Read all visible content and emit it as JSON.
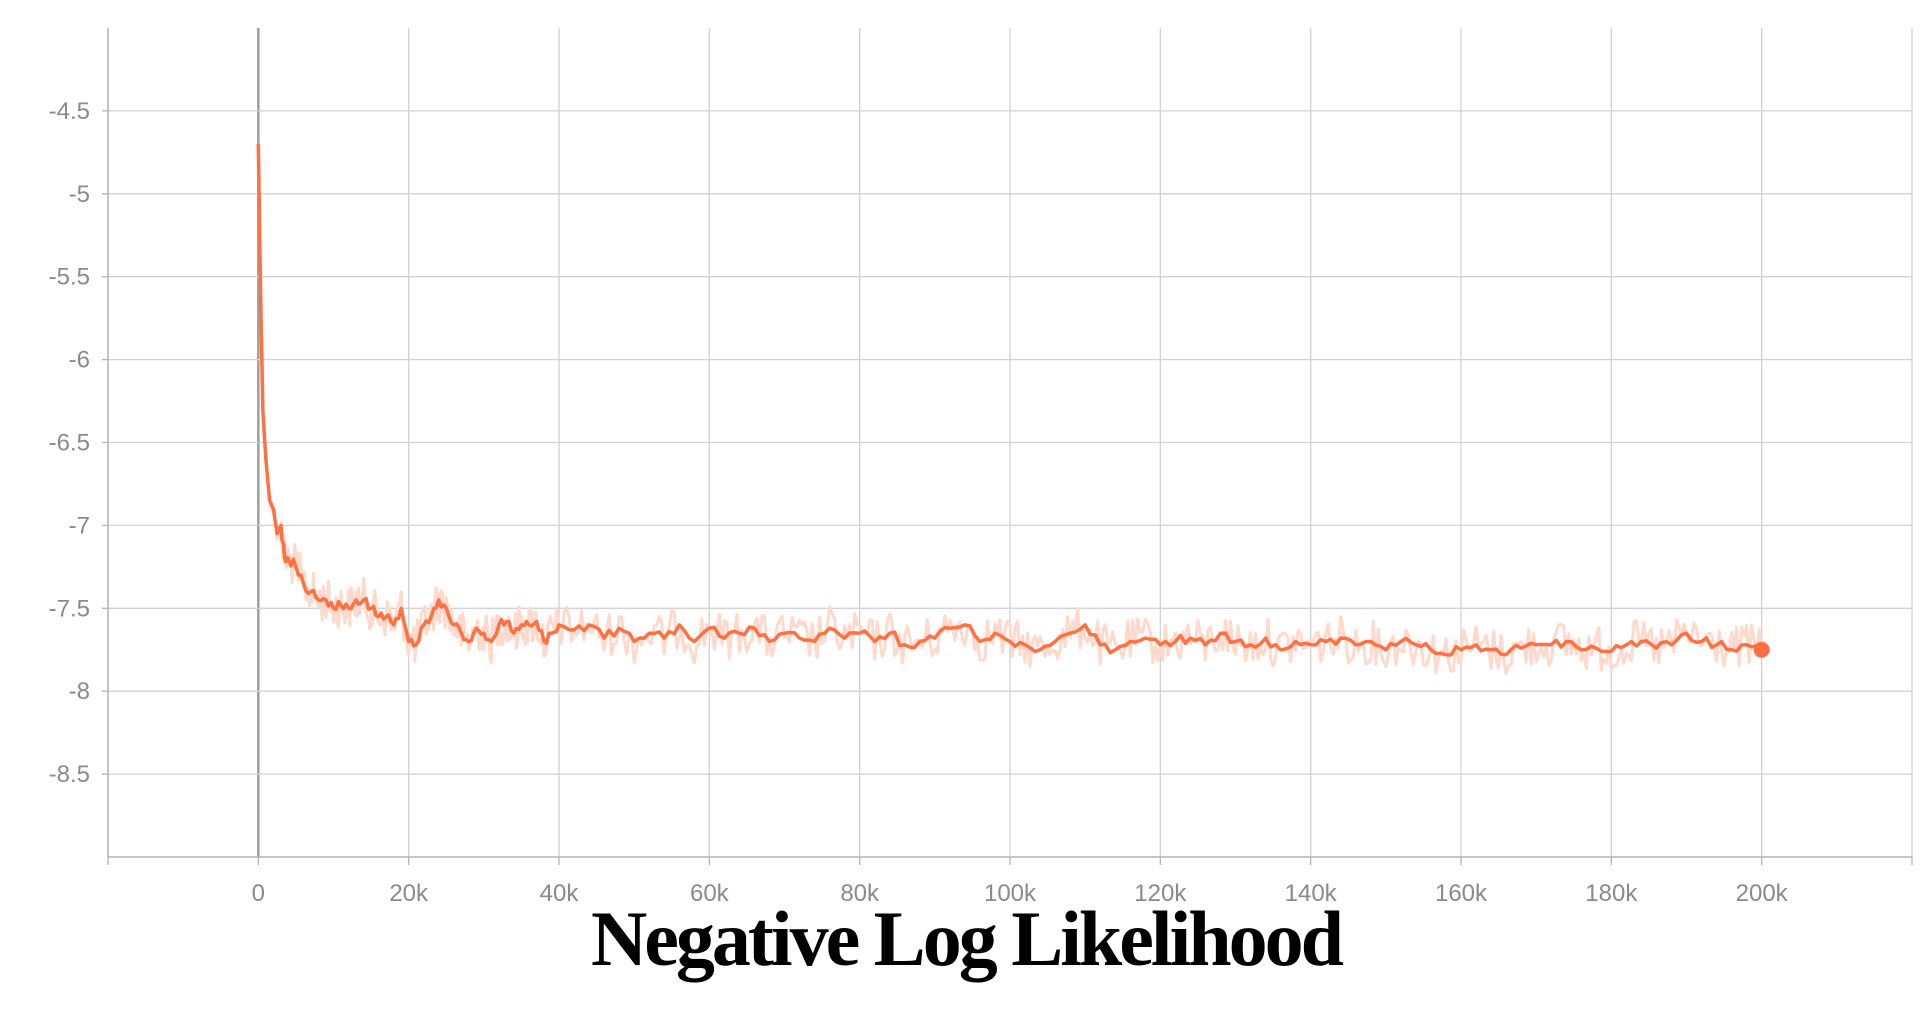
{
  "chart_data": {
    "type": "line",
    "title": "Negative Log Likelihood",
    "xlabel": "",
    "ylabel": "",
    "xlim": [
      -20000,
      220000
    ],
    "ylim": [
      -9.0,
      -4.0
    ],
    "x_ticks": [
      0,
      20000,
      40000,
      60000,
      80000,
      100000,
      120000,
      140000,
      160000,
      180000,
      200000
    ],
    "x_tick_labels": [
      "0",
      "20k",
      "40k",
      "60k",
      "80k",
      "100k",
      "120k",
      "140k",
      "160k",
      "180k",
      "200k"
    ],
    "y_ticks": [
      -4.5,
      -5,
      -5.5,
      -6,
      -6.5,
      -7,
      -7.5,
      -8,
      -8.5
    ],
    "y_tick_labels": [
      "-4.5",
      "-5",
      "-5.5",
      "-6",
      "-6.5",
      "-7",
      "-7.5",
      "-8",
      "-8.5"
    ],
    "grid": true,
    "legend": "none",
    "colors": {
      "smoothed_line": "#ff7043",
      "raw_line": "#ffd9cc",
      "grid": "#d2d2d2",
      "axis": "#b4b4b4",
      "zero_line": "#9e9e9e"
    },
    "series": [
      {
        "x": [
          0,
          300,
          600,
          1000,
          1500,
          2000,
          2500,
          3000,
          3500,
          4000,
          5000,
          6000,
          7000,
          8000,
          9000,
          10000,
          11000,
          12000,
          13000,
          14000,
          15000,
          16000,
          17000,
          18000,
          19000,
          20000,
          21000,
          22000,
          23000,
          24000,
          25000,
          26000,
          27000,
          28000,
          29000,
          30000,
          31000,
          32000,
          33000,
          34000,
          35000,
          36000,
          37000,
          38000,
          39000,
          40000,
          42000,
          44000,
          46000,
          48000,
          50000,
          52000,
          54000,
          56000,
          58000,
          60000,
          62000,
          64000,
          66000,
          68000,
          70000,
          72000,
          74000,
          76000,
          78000,
          80000,
          82000,
          84000,
          86000,
          88000,
          90000,
          92000,
          94000,
          96000,
          98000,
          100000,
          102000,
          104000,
          106000,
          108000,
          110000,
          112000,
          114000,
          116000,
          118000,
          120000,
          122000,
          124000,
          126000,
          128000,
          130000,
          132000,
          134000,
          136000,
          138000,
          140000,
          142000,
          144000,
          146000,
          148000,
          150000,
          152000,
          154000,
          156000,
          158000,
          160000,
          162000,
          164000,
          166000,
          168000,
          170000,
          172000,
          174000,
          176000,
          178000,
          180000,
          182000,
          184000,
          186000,
          188000,
          190000,
          192000,
          194000,
          196000,
          198000,
          200000
        ],
        "values": [
          -4.7,
          -5.6,
          -6.3,
          -6.6,
          -6.85,
          -6.9,
          -7.05,
          -7.0,
          -7.2,
          -7.2,
          -7.25,
          -7.35,
          -7.4,
          -7.45,
          -7.45,
          -7.5,
          -7.48,
          -7.5,
          -7.45,
          -7.45,
          -7.5,
          -7.55,
          -7.55,
          -7.6,
          -7.5,
          -7.7,
          -7.72,
          -7.6,
          -7.55,
          -7.45,
          -7.5,
          -7.6,
          -7.65,
          -7.7,
          -7.62,
          -7.65,
          -7.7,
          -7.6,
          -7.58,
          -7.65,
          -7.6,
          -7.6,
          -7.58,
          -7.7,
          -7.65,
          -7.6,
          -7.63,
          -7.6,
          -7.68,
          -7.62,
          -7.7,
          -7.65,
          -7.68,
          -7.6,
          -7.7,
          -7.62,
          -7.68,
          -7.65,
          -7.62,
          -7.7,
          -7.65,
          -7.68,
          -7.7,
          -7.62,
          -7.68,
          -7.65,
          -7.7,
          -7.65,
          -7.72,
          -7.7,
          -7.68,
          -7.62,
          -7.6,
          -7.7,
          -7.65,
          -7.7,
          -7.72,
          -7.75,
          -7.7,
          -7.65,
          -7.6,
          -7.72,
          -7.75,
          -7.7,
          -7.68,
          -7.72,
          -7.7,
          -7.68,
          -7.72,
          -7.65,
          -7.7,
          -7.72,
          -7.68,
          -7.75,
          -7.7,
          -7.72,
          -7.7,
          -7.68,
          -7.72,
          -7.7,
          -7.75,
          -7.7,
          -7.72,
          -7.75,
          -7.78,
          -7.75,
          -7.72,
          -7.75,
          -7.78,
          -7.74,
          -7.72,
          -7.72,
          -7.7,
          -7.75,
          -7.74,
          -7.76,
          -7.72,
          -7.7,
          -7.74,
          -7.72,
          -7.65,
          -7.7,
          -7.72,
          -7.75,
          -7.72,
          -7.75
        ],
        "marker_last_point": true
      }
    ]
  }
}
